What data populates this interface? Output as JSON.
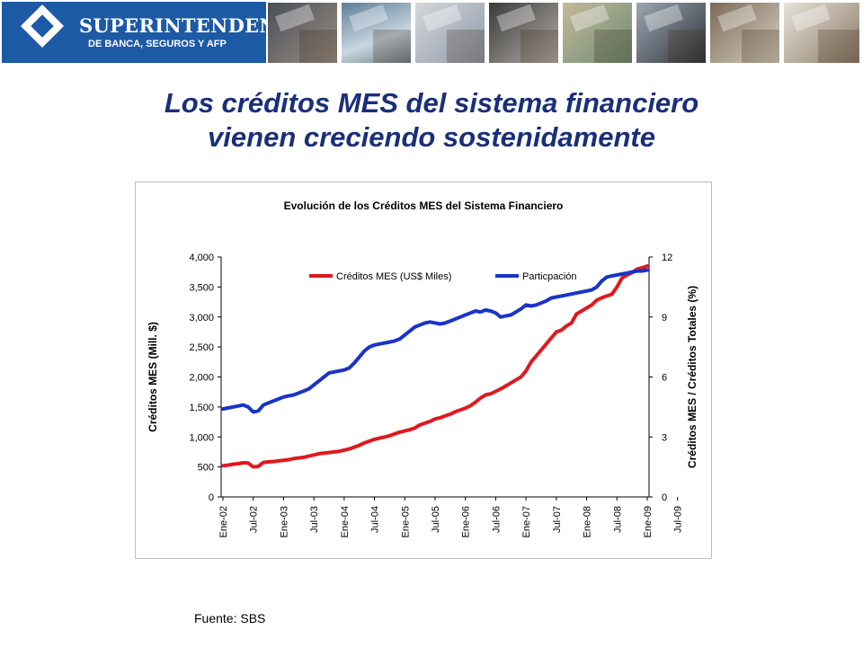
{
  "header": {
    "brand_name": "SUPERINTENDENCIA",
    "brand_subtitle": "DE BANCA, SEGUROS Y AFP",
    "brand_color": "#1d5aa6"
  },
  "slide": {
    "title_line1": "Los créditos MES del sistema financiero",
    "title_line2": "vienen creciendo sostenidamente",
    "title_color": "#1a2f7a",
    "source": "Fuente: SBS"
  },
  "chart_data": {
    "type": "line",
    "title": "Evolución de los Créditos MES del Sistema Financiero",
    "ylabel_left": "Créditos MES (Mill. $)",
    "ylabel_right": "Créditos MES / Créditos Totales (%)",
    "ylim_left": [
      0,
      4000
    ],
    "yticks_left": [
      "0",
      "500",
      "1,000",
      "1,500",
      "2,000",
      "2,500",
      "3,000",
      "3,500",
      "4,000"
    ],
    "ylim_right": [
      0,
      12
    ],
    "yticks_right": [
      "0",
      "3",
      "6",
      "9",
      "12"
    ],
    "x_tick_labels": [
      "Ene-02",
      "Jul-02",
      "Ene-03",
      "Jul-03",
      "Ene-04",
      "Jul-04",
      "Ene-05",
      "Jul-05",
      "Ene-06",
      "Jul-06",
      "Ene-07",
      "Jul-07",
      "Ene-08",
      "Jul-08",
      "Ene-09",
      "Jul-09"
    ],
    "x_period": "monthly, Ene-02 to Set-09",
    "grid": false,
    "legend_position": "top",
    "series": [
      {
        "name": "Créditos MES (US$ Miles)",
        "axis": "left",
        "color": "#e0191e",
        "values": [
          520,
          530,
          545,
          555,
          570,
          565,
          500,
          510,
          575,
          585,
          590,
          600,
          610,
          620,
          640,
          650,
          660,
          680,
          700,
          720,
          730,
          740,
          750,
          760,
          780,
          800,
          830,
          860,
          900,
          930,
          960,
          980,
          1000,
          1020,
          1050,
          1080,
          1100,
          1120,
          1150,
          1200,
          1230,
          1260,
          1300,
          1320,
          1350,
          1380,
          1420,
          1450,
          1480,
          1520,
          1580,
          1650,
          1700,
          1720,
          1760,
          1800,
          1850,
          1900,
          1950,
          2000,
          2100,
          2250,
          2350,
          2450,
          2550,
          2650,
          2750,
          2780,
          2850,
          2900,
          3050,
          3100,
          3150,
          3200,
          3280,
          3320,
          3350,
          3380,
          3500,
          3650,
          3700,
          3740,
          3800,
          3820,
          3850
        ]
      },
      {
        "name": "Particpación",
        "axis": "right",
        "color": "#1a33c8",
        "values": [
          4.4,
          4.45,
          4.5,
          4.55,
          4.6,
          4.5,
          4.25,
          4.3,
          4.6,
          4.7,
          4.8,
          4.9,
          5.0,
          5.05,
          5.1,
          5.2,
          5.3,
          5.4,
          5.6,
          5.8,
          6.0,
          6.2,
          6.25,
          6.3,
          6.35,
          6.45,
          6.7,
          7.0,
          7.3,
          7.5,
          7.6,
          7.65,
          7.7,
          7.75,
          7.8,
          7.9,
          8.1,
          8.3,
          8.5,
          8.6,
          8.7,
          8.75,
          8.7,
          8.65,
          8.7,
          8.8,
          8.9,
          9.0,
          9.1,
          9.2,
          9.3,
          9.25,
          9.35,
          9.3,
          9.2,
          9.0,
          9.05,
          9.1,
          9.25,
          9.4,
          9.6,
          9.55,
          9.6,
          9.7,
          9.8,
          9.95,
          10.0,
          10.05,
          10.1,
          10.15,
          10.2,
          10.25,
          10.3,
          10.35,
          10.5,
          10.8,
          11.0,
          11.05,
          11.1,
          11.15,
          11.2,
          11.25,
          11.3,
          11.3,
          11.35
        ]
      }
    ]
  }
}
